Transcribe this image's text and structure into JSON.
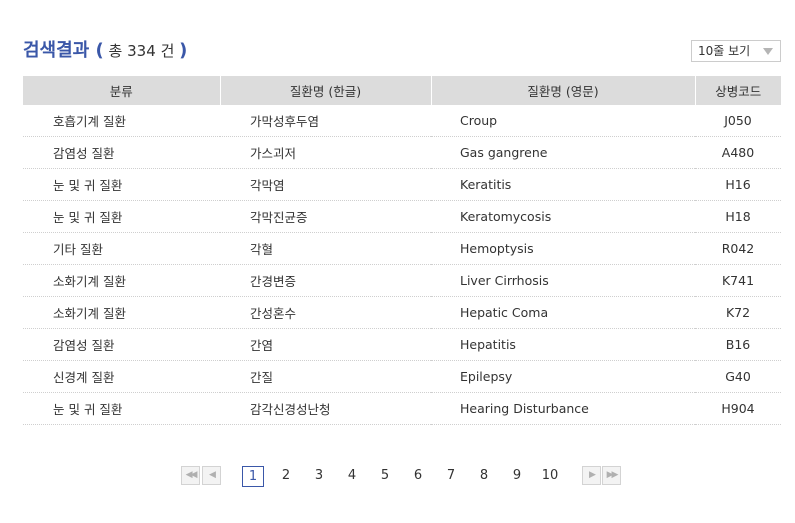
{
  "header": {
    "title": "검색결과",
    "paren_open": "(",
    "count_prefix": "총",
    "count": "334",
    "count_suffix": "건",
    "paren_close": ")"
  },
  "page_size": {
    "selected": "10줄 보기"
  },
  "table": {
    "columns": [
      "분류",
      "질환명 (한글)",
      "질환명 (영문)",
      "상병코드"
    ],
    "rows": [
      {
        "category": "호흡기계 질환",
        "name_kr": "가막성후두염",
        "name_en": "Croup",
        "code": "J050"
      },
      {
        "category": "감염성 질환",
        "name_kr": "가스괴저",
        "name_en": "Gas gangrene",
        "code": "A480"
      },
      {
        "category": "눈 및 귀 질환",
        "name_kr": "각막염",
        "name_en": "Keratitis",
        "code": "H16"
      },
      {
        "category": "눈 및 귀 질환",
        "name_kr": "각막진균증",
        "name_en": "Keratomycosis",
        "code": "H18"
      },
      {
        "category": "기타 질환",
        "name_kr": "각혈",
        "name_en": "Hemoptysis",
        "code": "R042"
      },
      {
        "category": "소화기계 질환",
        "name_kr": "간경변증",
        "name_en": "Liver Cirrhosis",
        "code": "K741"
      },
      {
        "category": "소화기계 질환",
        "name_kr": "간성혼수",
        "name_en": "Hepatic Coma",
        "code": "K72"
      },
      {
        "category": "감염성 질환",
        "name_kr": "간염",
        "name_en": "Hepatitis",
        "code": "B16"
      },
      {
        "category": "신경계 질환",
        "name_kr": "간질",
        "name_en": "Epilepsy",
        "code": "G40"
      },
      {
        "category": "눈 및 귀 질환",
        "name_kr": "감각신경성난청",
        "name_en": "Hearing Disturbance",
        "code": "H904"
      }
    ]
  },
  "pagination": {
    "first_glyph": "◀◀",
    "prev_glyph": "◀",
    "next_glyph": "▶",
    "last_glyph": "▶▶",
    "pages": [
      "1",
      "2",
      "3",
      "4",
      "5",
      "6",
      "7",
      "8",
      "9",
      "10"
    ],
    "current": "1"
  }
}
